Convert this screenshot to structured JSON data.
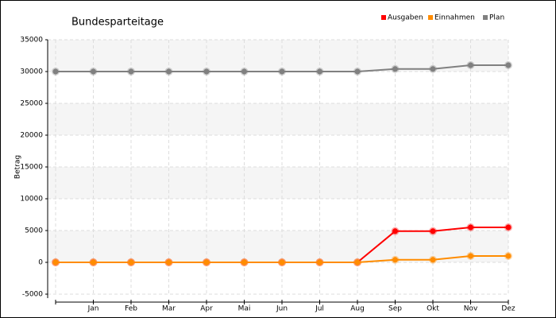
{
  "chart_data": {
    "type": "line",
    "title": "Bundesparteitage",
    "y_label": "Betrag",
    "categories": [
      null,
      "Jan",
      "Feb",
      "Mar",
      "Apr",
      "Mai",
      "Jun",
      "Jul",
      "Aug",
      "Sep",
      "Okt",
      "Nov",
      "Dez"
    ],
    "series": [
      {
        "name": "Ausgaben",
        "color": "#ff0000",
        "values": [
          0,
          0,
          0,
          0,
          0,
          0,
          0,
          0,
          0,
          4900,
          4900,
          5500,
          5500
        ]
      },
      {
        "name": "Einnahmen",
        "color": "#ff8c00",
        "values": [
          0,
          0,
          0,
          0,
          0,
          0,
          0,
          0,
          0,
          400,
          400,
          1000,
          1000
        ]
      },
      {
        "name": "Plan",
        "color": "#808080",
        "values": [
          30000,
          30000,
          30000,
          30000,
          30000,
          30000,
          30000,
          30000,
          30000,
          30400,
          30400,
          31000,
          31000
        ]
      }
    ],
    "ylim": [
      -5000,
      35000
    ],
    "yticks": [
      -5000,
      0,
      5000,
      10000,
      15000,
      20000,
      25000,
      30000,
      35000
    ],
    "grid": true,
    "legend": "top-right"
  }
}
